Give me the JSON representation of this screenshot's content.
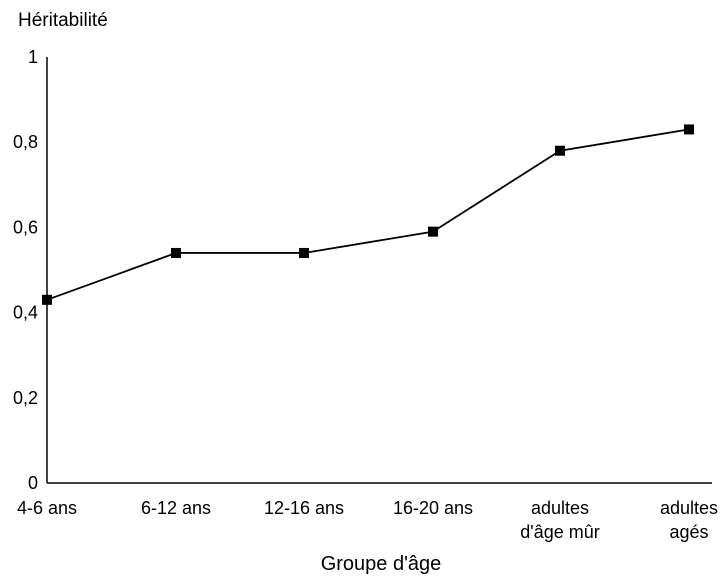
{
  "chart_data": {
    "type": "line",
    "title": "",
    "ylabel": "Héritabilité",
    "xlabel": "Groupe d'âge",
    "categories": [
      [
        "4-6 ans"
      ],
      [
        "6-12 ans"
      ],
      [
        "12-16 ans"
      ],
      [
        "16-20 ans"
      ],
      [
        "adultes",
        "d'âge mûr"
      ],
      [
        "adultes",
        "agés"
      ]
    ],
    "series": [
      {
        "values": [
          0.43,
          0.54,
          0.54,
          0.59,
          0.78,
          0.83
        ]
      }
    ],
    "ylim": [
      0,
      1
    ],
    "yticks": [
      {
        "value": 0,
        "label": "0"
      },
      {
        "value": 0.2,
        "label": "0,2"
      },
      {
        "value": 0.4,
        "label": "0,4"
      },
      {
        "value": 0.6,
        "label": "0,6"
      },
      {
        "value": 0.8,
        "label": "0,8"
      },
      {
        "value": 1,
        "label": "1"
      }
    ],
    "grid": false,
    "marker": "square",
    "color": "#000000"
  }
}
